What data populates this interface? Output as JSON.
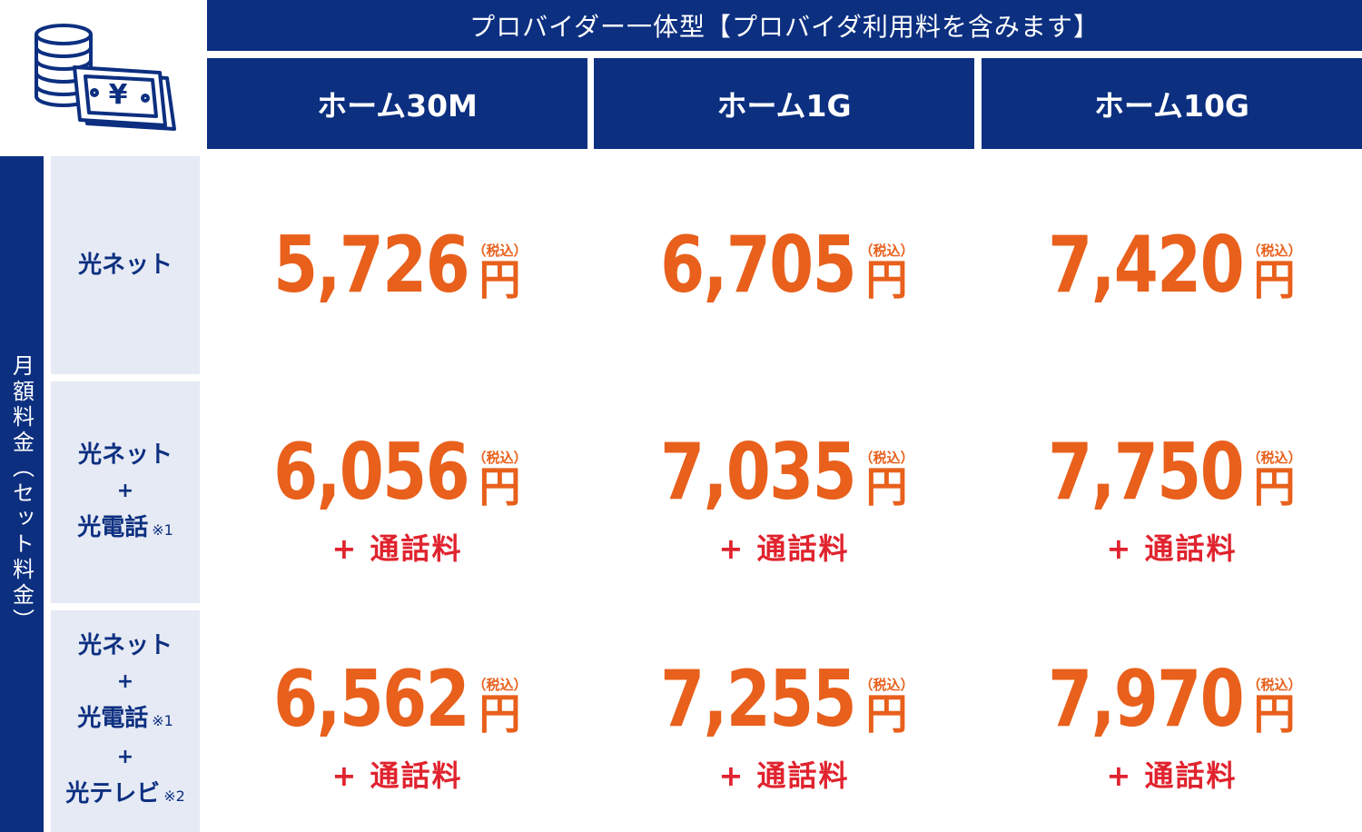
{
  "header": {
    "title": "プロバイダー一体型【プロバイダ利用料を含みます】",
    "plans": [
      "ホーム30M",
      "ホーム1G",
      "ホーム10G"
    ]
  },
  "side_label": "月額料金（セット料金）",
  "rows": [
    {
      "lines": [
        "光ネット"
      ],
      "notes": [
        ""
      ],
      "prices": [
        "5,726",
        "6,705",
        "7,420"
      ],
      "extra": ""
    },
    {
      "lines": [
        "光ネット",
        "+",
        "光電話"
      ],
      "notes": [
        "",
        "",
        "※1"
      ],
      "prices": [
        "6,056",
        "7,035",
        "7,750"
      ],
      "extra": "+ 通話料"
    },
    {
      "lines": [
        "光ネット",
        "+",
        "光電話",
        "+",
        "光テレビ"
      ],
      "notes": [
        "",
        "",
        "※1",
        "",
        "※2"
      ],
      "prices": [
        "6,562",
        "7,255",
        "7,970"
      ],
      "extra": "+ 通話料"
    }
  ],
  "price_unit": "円",
  "tax_label": "（税込）",
  "icons": {
    "header_icon": "coins-and-yen-bill-icon"
  },
  "colors": {
    "navy": "#0c2f80",
    "price_orange": "#e8601c",
    "extra_red": "#e0232e",
    "row_header_bg": "#e6eaf4"
  }
}
